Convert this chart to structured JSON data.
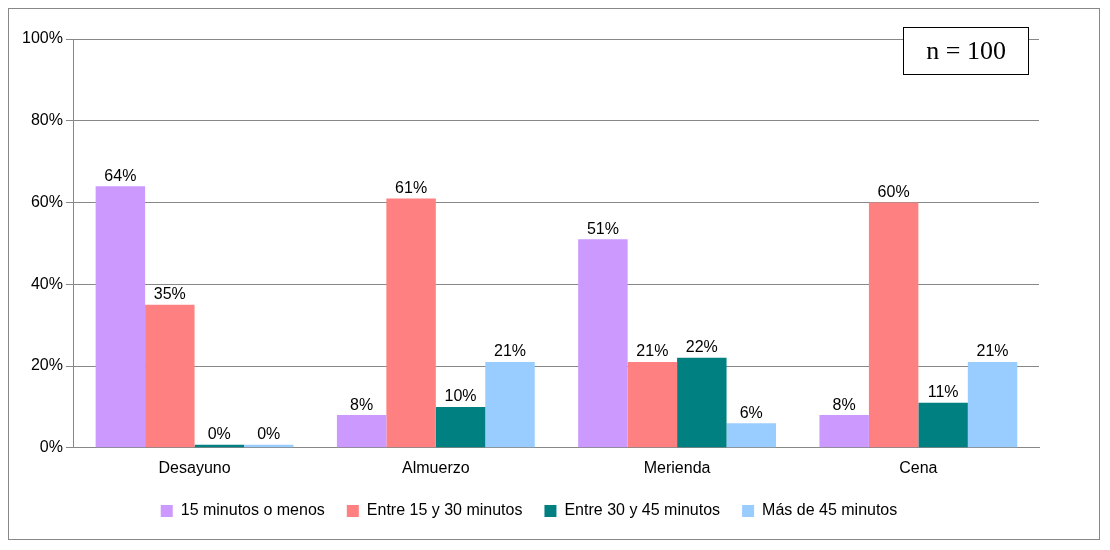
{
  "chart_data": {
    "type": "bar",
    "categories": [
      "Desayuno",
      "Almuerzo",
      "Merienda",
      "Cena"
    ],
    "series": [
      {
        "name": "15 minutos o menos",
        "color": "#cc99ff",
        "values": [
          64,
          8,
          51,
          8
        ],
        "value_labels": [
          "64%",
          "8%",
          "51%",
          "8%"
        ]
      },
      {
        "name": "Entre 15 y 30 minutos",
        "color": "#ff8080",
        "values": [
          35,
          61,
          21,
          60
        ],
        "value_labels": [
          "35%",
          "61%",
          "21%",
          "60%"
        ]
      },
      {
        "name": "Entre 30 y 45 minutos",
        "color": "#008080",
        "values": [
          0,
          10,
          22,
          11
        ],
        "value_labels": [
          "0%",
          "10%",
          "22%",
          "11%"
        ]
      },
      {
        "name": "Más de 45 minutos",
        "color": "#99ccff",
        "values": [
          0,
          21,
          6,
          21
        ],
        "value_labels": [
          "0%",
          "21%",
          "6%",
          "21%"
        ]
      }
    ],
    "ylim": [
      0,
      100
    ],
    "yticks": [
      {
        "value": 0,
        "label": "0%"
      },
      {
        "value": 20,
        "label": "20%"
      },
      {
        "value": 40,
        "label": "40%"
      },
      {
        "value": 60,
        "label": "60%"
      },
      {
        "value": 80,
        "label": "80%"
      },
      {
        "value": 100,
        "label": "100%"
      }
    ],
    "grid": "y",
    "legend": "bottom",
    "annotations": [
      "n = 100"
    ]
  }
}
